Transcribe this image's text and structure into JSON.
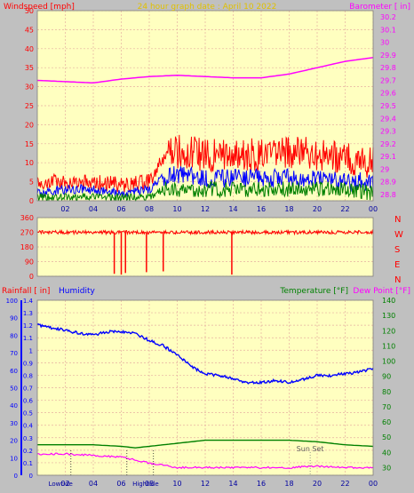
{
  "header": {
    "title": "24 hour graph date : April 10 2022",
    "wind_label": "Windspeed [mph]",
    "baro_label": "Barometer [ in]"
  },
  "footer": {
    "rain_label": "Rainfall [ in]",
    "humidity_label": "Humidity",
    "temp_label": "Temperature [°F]",
    "dew_label": "Dew Point [°F]",
    "sunset_label": "Sun Set",
    "low_label": "Low",
    "high_label": "High",
    "tide_label_low": "Lowtide",
    "tide_label_high": "Hightide"
  },
  "colors": {
    "background": "#c0c0c0",
    "plot": "#ffffc0",
    "grid": "#e6b0a0",
    "wind_gust": "#ff0000",
    "wind_avg": "#0000ff",
    "wind_min": "#008000",
    "barometer": "#ff00ff",
    "direction": "#ff0000",
    "humidity": "#0000ff",
    "temperature": "#008000",
    "dewpoint": "#ff00ff",
    "rain_axis": "#0000ff"
  },
  "chart_data": [
    {
      "type": "line",
      "panel": "wind-barometer",
      "x_ticks": [
        "02",
        "04",
        "06",
        "08",
        "10",
        "12",
        "14",
        "16",
        "18",
        "20",
        "22",
        "00"
      ],
      "y_left": {
        "label": "Windspeed [mph]",
        "ticks": [
          0,
          5,
          10,
          15,
          20,
          25,
          30,
          35,
          40,
          45,
          50
        ],
        "range": [
          0,
          50
        ]
      },
      "y_right": {
        "label": "Barometer [ in]",
        "ticks": [
          "28.8",
          "28.9",
          "29",
          "29.1",
          "29.2",
          "29.3",
          "29.4",
          "29.5",
          "29.6",
          "29.7",
          "29.8",
          "29.9",
          "30",
          "30.1",
          "30.2"
        ],
        "range": [
          28.75,
          30.25
        ]
      },
      "series": [
        {
          "name": "gust",
          "axis": "left",
          "x": [
            0,
            2,
            4,
            6,
            8,
            9,
            10,
            12,
            14,
            16,
            18,
            20,
            22,
            24
          ],
          "values": [
            5,
            5,
            5,
            4,
            5,
            11,
            13,
            12,
            12,
            12,
            13,
            12,
            11,
            10
          ]
        },
        {
          "name": "average",
          "axis": "left",
          "x": [
            0,
            2,
            4,
            6,
            8,
            9,
            10,
            12,
            14,
            16,
            18,
            20,
            22,
            24
          ],
          "values": [
            2,
            3,
            3,
            2,
            3,
            6,
            7,
            6,
            6,
            6,
            6,
            6,
            5,
            5
          ]
        },
        {
          "name": "min",
          "axis": "left",
          "x": [
            0,
            2,
            4,
            6,
            8,
            9,
            10,
            12,
            14,
            16,
            18,
            20,
            22,
            24
          ],
          "values": [
            1,
            1,
            1,
            1,
            1,
            3,
            3,
            3,
            3,
            3,
            3,
            3,
            3,
            2
          ]
        },
        {
          "name": "barometer",
          "axis": "right",
          "x": [
            0,
            2,
            4,
            6,
            8,
            10,
            12,
            14,
            16,
            18,
            20,
            22,
            24
          ],
          "values": [
            29.7,
            29.69,
            29.68,
            29.71,
            29.73,
            29.74,
            29.73,
            29.72,
            29.72,
            29.75,
            29.8,
            29.85,
            29.88
          ]
        }
      ]
    },
    {
      "type": "scatter",
      "panel": "wind-direction",
      "y_ticks": [
        "360",
        "270",
        "180",
        "90",
        "0"
      ],
      "compass": [
        "N",
        "W",
        "S",
        "E",
        "N"
      ],
      "series": [
        {
          "name": "direction",
          "x": [
            0,
            2,
            4,
            5.5,
            5.7,
            6.0,
            7,
            8,
            9,
            12,
            13.9,
            14,
            16,
            20,
            22,
            24
          ],
          "values": [
            272,
            270,
            268,
            15,
            270,
            10,
            270,
            268,
            270,
            275,
            10,
            272,
            265,
            270,
            268,
            270
          ]
        }
      ]
    },
    {
      "type": "line",
      "panel": "rain-humidity-temp",
      "x_ticks": [
        "02",
        "04",
        "06",
        "08",
        "10",
        "12",
        "14",
        "16",
        "18",
        "20",
        "22",
        "00"
      ],
      "y_rain": {
        "label": "Rainfall [ in]",
        "ticks": [
          "0",
          "0.1",
          "0.2",
          "0.3",
          "0.4",
          "0.5",
          "0.6",
          "0.7",
          "0.8",
          "0.9",
          "1",
          "1.1",
          "1.2",
          "1.3",
          "1.4"
        ],
        "range": [
          0,
          1.4
        ]
      },
      "y_humidity": {
        "ticks": [
          0,
          10,
          20,
          30,
          40,
          50,
          60,
          70,
          80,
          90,
          100
        ],
        "range": [
          0,
          100
        ]
      },
      "y_temp": {
        "ticks": [
          30,
          40,
          50,
          60,
          70,
          80,
          90,
          100,
          110,
          120,
          130,
          140
        ],
        "range": [
          25,
          140
        ]
      },
      "series": [
        {
          "name": "humidity",
          "axis": "humidity",
          "x": [
            0,
            1,
            2,
            3,
            4,
            5,
            6,
            7,
            8,
            9,
            10,
            11,
            12,
            13,
            14,
            15,
            16,
            17,
            18,
            19,
            20,
            21,
            22,
            23,
            24
          ],
          "values": [
            86,
            84,
            83,
            81,
            80,
            82,
            82,
            81,
            77,
            74,
            69,
            62,
            58,
            57,
            55,
            53,
            53,
            54,
            53,
            55,
            57,
            57,
            58,
            59,
            61
          ]
        },
        {
          "name": "temperature",
          "axis": "temp",
          "x": [
            0,
            2,
            4,
            6,
            7,
            8,
            10,
            12,
            14,
            16,
            18,
            20,
            22,
            24
          ],
          "values": [
            45,
            45,
            45,
            44,
            43,
            44,
            46,
            48,
            48,
            48,
            48,
            47,
            45,
            44
          ]
        },
        {
          "name": "dewpoint",
          "axis": "temp",
          "x": [
            0,
            2,
            4,
            6,
            8,
            10,
            12,
            14,
            16,
            18,
            20,
            22,
            24
          ],
          "values": [
            39,
            39,
            38,
            37,
            33,
            30,
            30,
            30,
            30,
            30,
            31,
            30,
            30
          ]
        }
      ]
    }
  ]
}
